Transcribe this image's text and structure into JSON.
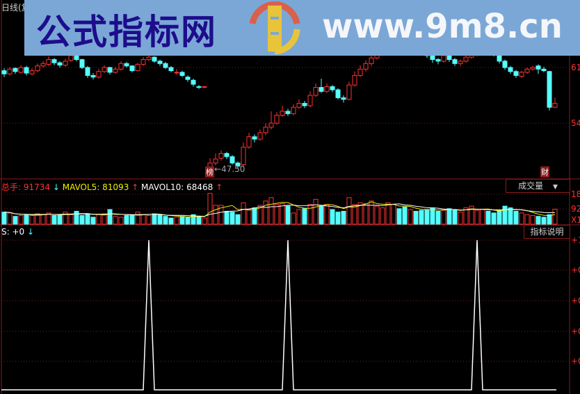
{
  "header": {
    "period_label": "日线(复"
  },
  "watermark": {
    "site_name": "公式指标网",
    "url": "www.9m8.cn",
    "logo_text": "www.9m8.cn"
  },
  "price_axis": {
    "labels": [
      "61",
      "54"
    ],
    "values": [
      61,
      54
    ]
  },
  "annotations": {
    "low_badge": "榜",
    "low_value": "47.50",
    "finance_badge": "财"
  },
  "volume_header": {
    "total_label": "总手: 91734",
    "total_dir": "down",
    "mavol5_label": "MAVOL5: 81093",
    "mavol5_dir": "up",
    "mavol10_label": "MAVOL10: 68468",
    "mavol10_dir": "up"
  },
  "volume_axis": {
    "labels": [
      "18",
      "92",
      "X1"
    ]
  },
  "volume_selector": {
    "label": "成交量"
  },
  "indicator": {
    "header": "S: +0",
    "header_dir": "down",
    "explain_button": "指标说明",
    "axis_labels": [
      "+1",
      "+0",
      "+0",
      "+0",
      "+0"
    ]
  },
  "colors": {
    "up": "#ff3232",
    "down": "#54ffff",
    "grid": "#8a1c1c",
    "mavol5": "#f0f000",
    "mavol10": "#ffffff",
    "indicator": "#ffffff",
    "banner": "#7ba7d6"
  },
  "chart_data": {
    "type": "candlestick",
    "candles_ochl": [
      [
        60.6,
        60.2,
        60.9,
        59.8
      ],
      [
        60.2,
        60.8,
        61.1,
        60.0
      ],
      [
        60.9,
        60.5,
        61.0,
        60.2
      ],
      [
        60.4,
        61.0,
        61.3,
        60.2
      ],
      [
        61.0,
        60.3,
        61.2,
        60.0
      ],
      [
        60.2,
        60.6,
        60.9,
        60.0
      ],
      [
        60.6,
        61.2,
        61.5,
        60.4
      ],
      [
        61.2,
        61.5,
        61.8,
        61.0
      ],
      [
        61.4,
        62.0,
        62.4,
        61.2
      ],
      [
        62.0,
        61.6,
        62.2,
        61.3
      ],
      [
        61.6,
        61.3,
        61.8,
        61.0
      ],
      [
        61.3,
        61.8,
        62.1,
        61.1
      ],
      [
        61.9,
        62.5,
        62.8,
        61.7
      ],
      [
        62.5,
        62.0,
        62.7,
        61.8
      ],
      [
        62.0,
        61.0,
        62.1,
        60.8
      ],
      [
        61.0,
        60.0,
        61.2,
        59.7
      ],
      [
        60.0,
        59.8,
        60.3,
        59.5
      ],
      [
        59.8,
        60.5,
        60.8,
        59.6
      ],
      [
        60.5,
        61.0,
        61.3,
        60.3
      ],
      [
        61.0,
        60.4,
        61.1,
        60.1
      ],
      [
        60.4,
        60.8,
        61.1,
        60.2
      ],
      [
        60.8,
        61.5,
        61.8,
        60.6
      ],
      [
        61.5,
        61.2,
        61.7,
        61.0
      ],
      [
        61.2,
        60.6,
        61.3,
        60.4
      ],
      [
        60.6,
        61.4,
        61.6,
        60.5
      ],
      [
        61.4,
        62.0,
        62.3,
        61.2
      ],
      [
        62.0,
        62.3,
        62.6,
        61.8
      ],
      [
        62.3,
        61.8,
        62.4,
        61.6
      ],
      [
        61.8,
        61.5,
        62.0,
        61.2
      ],
      [
        61.5,
        61.0,
        61.7,
        60.8
      ],
      [
        61.0,
        60.6,
        61.2,
        60.4
      ],
      [
        60.4,
        60.4,
        60.8,
        60.1
      ],
      [
        60.4,
        60.0,
        60.6,
        59.8
      ],
      [
        59.8,
        59.5,
        60.0,
        59.2
      ],
      [
        59.4,
        58.9,
        59.6,
        58.6
      ],
      [
        58.6,
        58.5,
        58.8,
        58.3
      ],
      [
        58.5,
        58.6,
        58.7,
        58.4
      ],
      [
        48.4,
        49.0,
        49.6,
        47.5
      ],
      [
        49.0,
        49.5,
        50.2,
        48.7
      ],
      [
        49.6,
        50.2,
        50.6,
        49.3
      ],
      [
        50.2,
        49.8,
        50.4,
        49.5
      ],
      [
        49.8,
        49.0,
        50.0,
        48.8
      ],
      [
        49.0,
        48.6,
        49.2,
        48.3
      ],
      [
        48.8,
        51.0,
        51.6,
        48.6
      ],
      [
        51.0,
        52.3,
        52.8,
        50.8
      ],
      [
        52.3,
        52.0,
        52.6,
        51.6
      ],
      [
        52.0,
        52.8,
        53.2,
        51.8
      ],
      [
        52.8,
        53.5,
        54.0,
        52.5
      ],
      [
        53.5,
        54.0,
        55.5,
        53.2
      ],
      [
        54.0,
        55.0,
        55.4,
        53.8
      ],
      [
        55.0,
        55.5,
        56.2,
        54.8
      ],
      [
        55.5,
        55.2,
        55.8,
        54.9
      ],
      [
        55.2,
        56.0,
        56.4,
        55.0
      ],
      [
        56.0,
        56.5,
        57.0,
        55.8
      ],
      [
        56.5,
        56.2,
        56.8,
        55.9
      ],
      [
        56.2,
        57.5,
        58.0,
        56.0
      ],
      [
        57.5,
        58.5,
        59.0,
        57.3
      ],
      [
        58.5,
        58.0,
        59.6,
        57.8
      ],
      [
        58.0,
        58.6,
        59.0,
        57.8
      ],
      [
        58.6,
        58.2,
        58.8,
        57.9
      ],
      [
        58.2,
        57.2,
        58.4,
        57.0
      ],
      [
        57.2,
        57.0,
        57.5,
        56.6
      ],
      [
        57.0,
        58.8,
        59.2,
        56.9
      ],
      [
        58.8,
        60.0,
        60.5,
        58.6
      ],
      [
        60.0,
        60.8,
        61.3,
        59.8
      ],
      [
        60.8,
        61.5,
        61.9,
        60.5
      ],
      [
        61.5,
        62.2,
        62.8,
        61.2
      ],
      [
        62.2,
        62.8,
        63.3,
        62.0
      ],
      [
        62.8,
        63.5,
        63.9,
        62.6
      ],
      [
        63.5,
        64.0,
        64.5,
        63.2
      ],
      [
        64.0,
        64.5,
        64.9,
        63.8
      ],
      [
        64.5,
        64.2,
        64.8,
        63.9
      ],
      [
        64.2,
        63.8,
        64.4,
        63.5
      ],
      [
        63.8,
        64.0,
        64.3,
        63.6
      ],
      [
        64.0,
        63.5,
        64.2,
        63.2
      ],
      [
        63.5,
        63.0,
        63.7,
        62.7
      ],
      [
        63.0,
        62.5,
        63.2,
        62.2
      ],
      [
        62.5,
        62.0,
        62.7,
        61.6
      ],
      [
        62.0,
        61.8,
        62.2,
        61.4
      ],
      [
        61.8,
        62.5,
        62.8,
        61.6
      ],
      [
        62.5,
        62.0,
        62.6,
        61.7
      ],
      [
        62.0,
        61.5,
        62.2,
        61.2
      ],
      [
        61.5,
        61.8,
        62.0,
        61.2
      ],
      [
        61.8,
        62.3,
        62.6,
        61.6
      ],
      [
        62.3,
        62.6,
        62.9,
        62.1
      ],
      [
        62.6,
        63.0,
        63.3,
        62.4
      ],
      [
        63.0,
        63.2,
        63.6,
        62.8
      ],
      [
        63.2,
        63.0,
        63.5,
        62.8
      ],
      [
        63.0,
        62.6,
        63.2,
        62.4
      ],
      [
        62.6,
        61.8,
        62.7,
        61.5
      ],
      [
        61.8,
        61.0,
        62.0,
        60.7
      ],
      [
        61.0,
        60.5,
        61.2,
        60.2
      ],
      [
        60.5,
        60.0,
        60.7,
        59.7
      ],
      [
        59.9,
        60.4,
        60.6,
        59.7
      ],
      [
        60.4,
        60.8,
        61.0,
        60.2
      ],
      [
        60.8,
        61.0,
        61.2,
        60.6
      ],
      [
        61.2,
        60.8,
        61.4,
        60.2
      ],
      [
        60.8,
        60.6,
        61.1,
        60.4
      ],
      [
        60.5,
        56.0,
        60.6,
        55.6
      ],
      [
        56.0,
        56.5,
        57.2,
        55.9
      ]
    ],
    "volume": [
      75000,
      70000,
      50000,
      55000,
      60000,
      55000,
      65000,
      60000,
      70000,
      55000,
      60000,
      75000,
      60000,
      80000,
      55000,
      65000,
      45000,
      60000,
      65000,
      90000,
      50000,
      45000,
      55000,
      60000,
      75000,
      60000,
      55000,
      65000,
      60000,
      50000,
      40000,
      45000,
      50000,
      45000,
      60000,
      45000,
      40000,
      185000,
      115000,
      115000,
      80000,
      75000,
      60000,
      130000,
      90000,
      100000,
      115000,
      140000,
      160000,
      120000,
      125000,
      110000,
      70000,
      90000,
      95000,
      120000,
      150000,
      110000,
      120000,
      90000,
      75000,
      80000,
      160000,
      120000,
      130000,
      125000,
      140000,
      110000,
      100000,
      130000,
      120000,
      95000,
      105000,
      90000,
      80000,
      85000,
      90000,
      100000,
      80000,
      85000,
      95000,
      90000,
      75000,
      100000,
      110000,
      85000,
      90000,
      80000,
      70000,
      85000,
      110000,
      100000,
      80000,
      70000,
      60000,
      55000,
      50000,
      45000,
      60000,
      91734
    ],
    "indicator_s": {
      "spike_indices": [
        26,
        51,
        85
      ],
      "spike_value": 1,
      "base_value": 0
    },
    "price_ylim": [
      47,
      65
    ],
    "volume_ylim": [
      0,
      180000
    ],
    "indicator_ylim": [
      0,
      1
    ],
    "grid": true
  }
}
